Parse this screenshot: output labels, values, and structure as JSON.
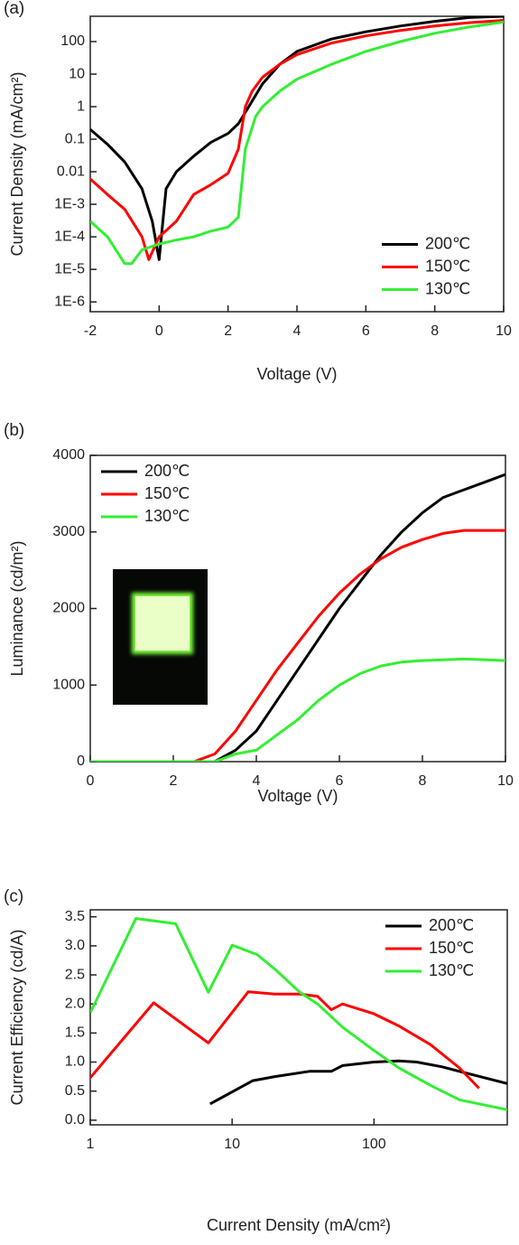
{
  "chart_data": [
    {
      "type": "line",
      "panel_label": "(a)",
      "x_label": "Voltage (V)",
      "y_label": "Current Density (mA/cm²)",
      "xlim": [
        -2,
        10
      ],
      "xticks": [
        -2,
        0,
        2,
        4,
        6,
        8,
        10
      ],
      "ylim": [
        5e-07,
        600
      ],
      "ylog": true,
      "yticks": [
        {
          "value": 1e-06,
          "label": "1E-6"
        },
        {
          "value": 1e-05,
          "label": "1E-5"
        },
        {
          "value": 0.0001,
          "label": "1E-4"
        },
        {
          "value": 0.001,
          "label": "1E-3"
        },
        0.01,
        0.1,
        1,
        10,
        100
      ],
      "legend": "lower right",
      "series": [
        {
          "name": "200℃",
          "color": "#000000",
          "x": [
            -2,
            -1.5,
            -1,
            -0.5,
            -0.2,
            0,
            0.2,
            0.5,
            1,
            1.5,
            2,
            2.3,
            2.6,
            3,
            3.5,
            4,
            5,
            6,
            7,
            8,
            9,
            10
          ],
          "values": [
            0.2,
            0.07,
            0.02,
            0.003,
            0.0003,
            2e-05,
            0.003,
            0.01,
            0.03,
            0.08,
            0.15,
            0.3,
            1,
            5,
            20,
            50,
            120,
            200,
            300,
            420,
            550,
            600
          ]
        },
        {
          "name": "150℃",
          "color": "#ff0000",
          "x": [
            -2,
            -1.5,
            -1,
            -0.5,
            -0.3,
            0,
            0.5,
            1,
            1.5,
            2,
            2.3,
            2.5,
            2.7,
            3,
            3.5,
            4,
            5,
            6,
            7,
            8,
            9,
            10
          ],
          "values": [
            0.006,
            0.002,
            0.0007,
            0.0001,
            2e-05,
            0.0001,
            0.0003,
            0.002,
            0.004,
            0.009,
            0.05,
            1,
            3,
            8,
            20,
            40,
            90,
            150,
            220,
            300,
            380,
            450
          ]
        },
        {
          "name": "130℃",
          "color": "#33ee33",
          "x": [
            -2,
            -1.5,
            -1,
            -0.8,
            -0.5,
            0,
            0.5,
            1,
            1.5,
            2,
            2.3,
            2.5,
            2.8,
            3,
            3.5,
            4,
            5,
            6,
            7,
            8,
            9,
            10
          ],
          "values": [
            0.0003,
            0.0001,
            1.5e-05,
            1.5e-05,
            4e-05,
            6e-05,
            8e-05,
            0.0001,
            0.00015,
            0.0002,
            0.0004,
            0.05,
            0.5,
            1,
            3,
            7,
            20,
            50,
            100,
            180,
            280,
            400
          ]
        }
      ]
    },
    {
      "type": "line",
      "panel_label": "(b)",
      "x_label": "Voltage (V)",
      "y_label": "Luminance (cd/m²)",
      "xlim": [
        0,
        10
      ],
      "xticks": [
        0,
        2,
        4,
        6,
        8,
        10
      ],
      "ylim": [
        0,
        4000
      ],
      "yticks": [
        0,
        1000,
        2000,
        3000,
        4000
      ],
      "legend": "upper left",
      "series": [
        {
          "name": "200℃",
          "color": "#000000",
          "x": [
            0,
            2,
            3,
            3.5,
            4,
            4.5,
            5,
            5.5,
            6,
            6.5,
            7,
            7.5,
            8,
            8.5,
            9,
            9.5,
            10
          ],
          "values": [
            0,
            0,
            0,
            150,
            400,
            800,
            1200,
            1600,
            2000,
            2350,
            2700,
            3000,
            3250,
            3450,
            3550,
            3650,
            3750
          ]
        },
        {
          "name": "150℃",
          "color": "#ff0000",
          "x": [
            0,
            2.5,
            3,
            3.5,
            4,
            4.5,
            5,
            5.5,
            6,
            6.5,
            7,
            7.5,
            8,
            8.5,
            9,
            10
          ],
          "values": [
            0,
            0,
            100,
            400,
            800,
            1200,
            1550,
            1900,
            2200,
            2450,
            2650,
            2800,
            2900,
            2980,
            3020,
            3020
          ]
        },
        {
          "name": "130℃",
          "color": "#33ee33",
          "x": [
            0,
            3,
            3.5,
            4,
            4.5,
            5,
            5.5,
            6,
            6.5,
            7,
            7.5,
            8,
            9,
            10
          ],
          "values": [
            0,
            0,
            100,
            150,
            350,
            550,
            800,
            1000,
            1150,
            1250,
            1300,
            1320,
            1340,
            1320
          ]
        }
      ]
    },
    {
      "type": "line",
      "panel_label": "(c)",
      "x_label": "Current Density (mA/cm²)",
      "y_label": "Current Efficiency (cd/A)",
      "xlim": [
        1,
        870
      ],
      "xlog": true,
      "xticks": [
        1,
        10,
        100
      ],
      "ylim": [
        -0.08,
        3.62
      ],
      "yticks": [
        {
          "value": 0,
          "label": "0.0"
        },
        0.5,
        {
          "value": 1,
          "label": "1.0"
        },
        1.5,
        {
          "value": 2,
          "label": "2.0"
        },
        2.5,
        {
          "value": 3,
          "label": "3.0"
        },
        3.5
      ],
      "legend": "upper right",
      "series": [
        {
          "name": "200℃",
          "color": "#000000",
          "x": [
            7,
            14,
            20,
            35,
            50,
            60,
            100,
            150,
            200,
            300,
            500,
            870
          ],
          "values": [
            0.28,
            0.68,
            0.75,
            0.84,
            0.84,
            0.94,
            1.0,
            1.02,
            1.0,
            0.92,
            0.78,
            0.63
          ]
        },
        {
          "name": "150℃",
          "color": "#ff0000",
          "x": [
            1,
            2.8,
            6.8,
            13,
            20,
            30,
            40,
            50,
            60,
            100,
            150,
            250,
            400,
            550
          ],
          "values": [
            0.73,
            2.02,
            1.33,
            2.21,
            2.17,
            2.17,
            2.13,
            1.9,
            2.0,
            1.83,
            1.62,
            1.3,
            0.9,
            0.55
          ]
        },
        {
          "name": "130℃",
          "color": "#33ee33",
          "x": [
            1,
            2.1,
            4,
            6.8,
            10,
            15,
            20,
            30,
            40,
            60,
            100,
            150,
            250,
            400,
            870
          ],
          "values": [
            1.85,
            3.47,
            3.38,
            2.2,
            3.01,
            2.85,
            2.6,
            2.2,
            2.0,
            1.6,
            1.2,
            0.9,
            0.6,
            0.35,
            0.18
          ]
        }
      ]
    }
  ]
}
